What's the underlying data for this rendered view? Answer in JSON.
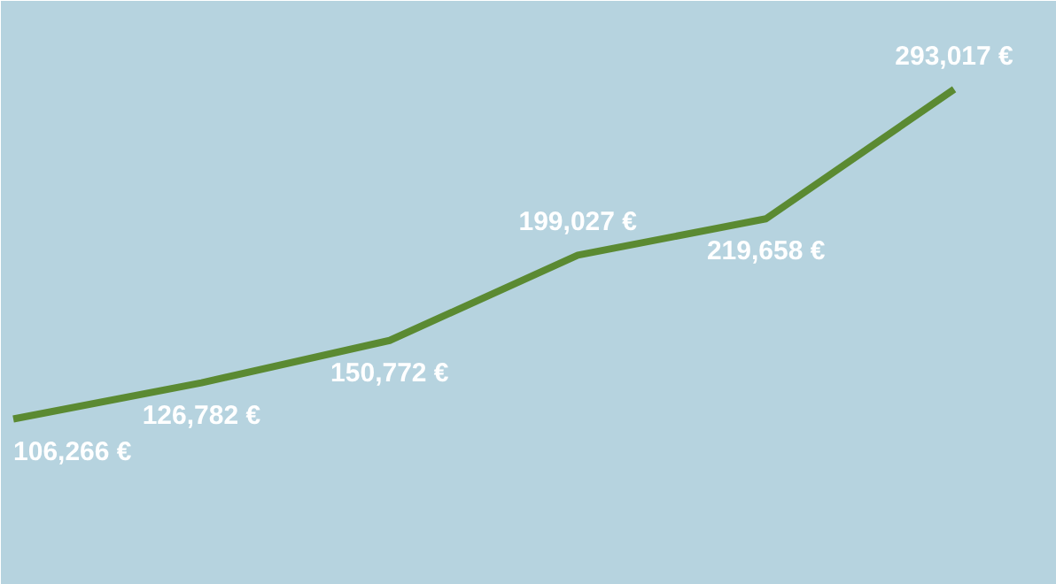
{
  "chart_data": {
    "type": "line",
    "categories": [
      null,
      null,
      null,
      null,
      null,
      null
    ],
    "series": [
      {
        "color": "#5b8a32",
        "values": [
          106266,
          126782,
          150772,
          199027,
          219658,
          293017
        ],
        "value_labels": [
          "106,266 €",
          "126,782 €",
          "150,772 €",
          "199,027 €",
          "219,658 €",
          "293,017 €"
        ]
      }
    ],
    "grid": false,
    "marker": "none",
    "line_style": "solid"
  }
}
